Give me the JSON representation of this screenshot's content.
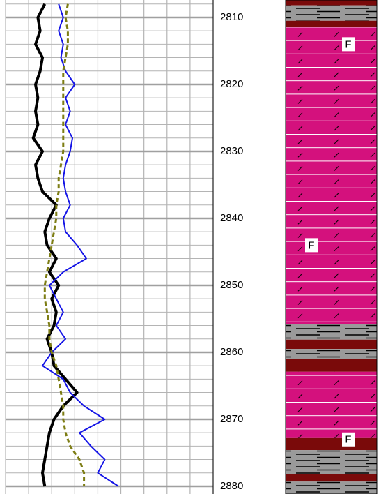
{
  "chart_data": {
    "type": "line",
    "x": [
      2808,
      2810,
      2812,
      2814,
      2816,
      2818,
      2820,
      2822,
      2824,
      2826,
      2828,
      2830,
      2832,
      2834,
      2836,
      2838,
      2840,
      2842,
      2844,
      2846,
      2848,
      2850,
      2852,
      2854,
      2856,
      2858,
      2860,
      2862,
      2864,
      2866,
      2868,
      2870,
      2872,
      2874,
      2876,
      2878,
      2880
    ],
    "series": [
      {
        "color": "#000000",
        "width": 4,
        "dashed": false,
        "values": [
          1.7,
          1.4,
          1.5,
          1.3,
          1.6,
          1.5,
          1.3,
          1.4,
          1.3,
          1.4,
          1.2,
          1.6,
          1.3,
          1.4,
          1.6,
          2.2,
          1.9,
          1.7,
          1.8,
          2.2,
          1.9,
          2.3,
          2.0,
          2.2,
          2.1,
          1.8,
          2.0,
          2.1,
          2.6,
          3.1,
          2.5,
          2.1,
          1.9,
          1.8,
          1.7,
          1.6,
          1.7
        ]
      },
      {
        "color": "#1414e6",
        "width": 2,
        "dashed": false,
        "values": [
          2.3,
          2.5,
          2.3,
          2.5,
          2.4,
          2.6,
          3.0,
          2.6,
          2.8,
          2.6,
          2.9,
          2.8,
          2.6,
          2.5,
          2.6,
          2.8,
          2.5,
          2.6,
          3.1,
          3.5,
          2.5,
          1.9,
          2.2,
          2.5,
          2.2,
          2.6,
          2.0,
          1.6,
          2.5,
          2.8,
          3.4,
          4.3,
          3.2,
          3.7,
          4.3,
          4.0,
          4.9
        ]
      },
      {
        "color": "#7d7d14",
        "width": 3,
        "dashed": true,
        "values": [
          2.7,
          2.6,
          2.7,
          2.7,
          2.6,
          2.5,
          2.5,
          2.5,
          2.5,
          2.5,
          2.5,
          2.5,
          2.4,
          2.3,
          2.3,
          2.2,
          2.2,
          2.1,
          2.0,
          1.9,
          1.8,
          1.7,
          1.7,
          1.8,
          1.9,
          1.9,
          2.0,
          2.2,
          2.3,
          2.4,
          2.5,
          2.5,
          2.6,
          2.8,
          3.2,
          3.4,
          3.4
        ]
      }
    ],
    "xlim": [
      0,
      9
    ],
    "xticks": [
      0,
      1,
      2,
      3,
      4,
      5,
      6,
      7,
      8,
      9
    ],
    "ylim": [
      2807.4,
      2881.15
    ],
    "y_inverted": true,
    "yticks": [
      2810,
      2820,
      2830,
      2840,
      2850,
      2860,
      2870,
      2880
    ],
    "grid": true,
    "minor_grid_step": 2,
    "lithology": [
      {
        "top": 2807.4,
        "base": 2808.2,
        "color": "#7a0a0a",
        "pattern": "none"
      },
      {
        "top": 2808.2,
        "base": 2810.5,
        "color": "#9a9a9a",
        "pattern": "dash"
      },
      {
        "top": 2810.5,
        "base": 2811.4,
        "color": "#7a0a0a",
        "pattern": "none"
      },
      {
        "top": 2811.4,
        "base": 2855.8,
        "color": "#d4117d",
        "pattern": "slash"
      },
      {
        "top": 2855.8,
        "base": 2858.1,
        "color": "#9a9a9a",
        "pattern": "dash"
      },
      {
        "top": 2858.1,
        "base": 2859.5,
        "color": "#7a0a0a",
        "pattern": "none"
      },
      {
        "top": 2859.5,
        "base": 2861.0,
        "color": "#9a9a9a",
        "pattern": "dash"
      },
      {
        "top": 2861.0,
        "base": 2862.9,
        "color": "#7a0a0a",
        "pattern": "none"
      },
      {
        "top": 2862.9,
        "base": 2872.8,
        "color": "#d4117d",
        "pattern": "slash"
      },
      {
        "top": 2872.8,
        "base": 2874.6,
        "color": "#7a0a0a",
        "pattern": "none"
      },
      {
        "top": 2874.6,
        "base": 2878.2,
        "color": "#9a9a9a",
        "pattern": "dash"
      },
      {
        "top": 2878.2,
        "base": 2879.3,
        "color": "#7a0a0a",
        "pattern": "none"
      },
      {
        "top": 2879.3,
        "base": 2881.15,
        "color": "#9a9a9a",
        "pattern": "dash"
      }
    ],
    "facies_labels": [
      {
        "text": "F",
        "depth": 2814,
        "column": "right"
      },
      {
        "text": "F",
        "depth": 2844,
        "column": "left"
      },
      {
        "text": "F",
        "depth": 2873,
        "column": "right"
      }
    ]
  }
}
